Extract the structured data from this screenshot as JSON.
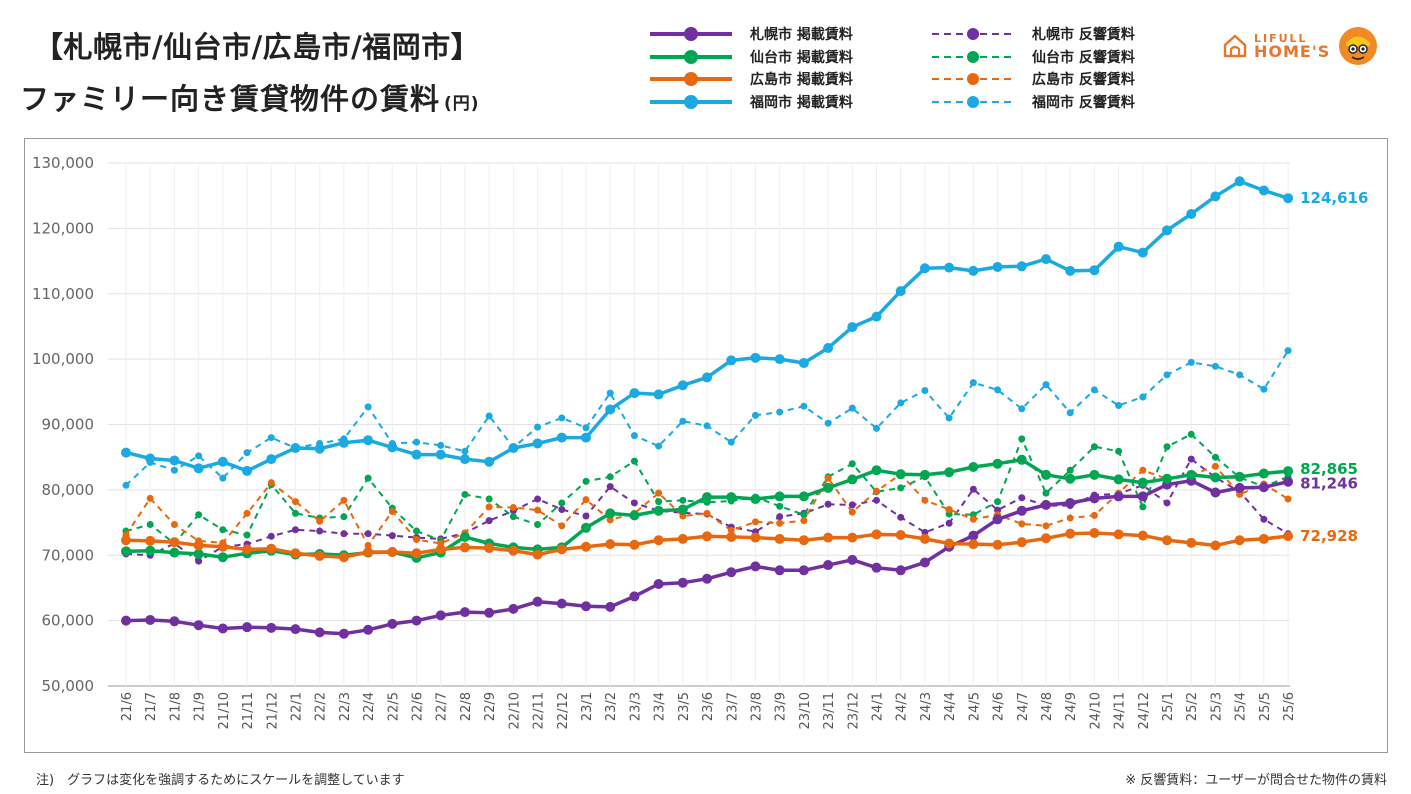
{
  "header": {
    "title_line1": "【札幌市/仙台市/広島市/福岡市】",
    "title_line2": "ファミリー向き賃貸物件の賃料",
    "unit": "(円)"
  },
  "logo": {
    "line1": "LIFULL",
    "line2": "HOME'S"
  },
  "notes": {
    "left": "注)　グラフは変化を強調するためにスケールを調整しています",
    "right": "※ 反響賃料：ユーザーが問合せた物件の賃料"
  },
  "colors": {
    "sapporo": "#7030a0",
    "sendai": "#00a651",
    "hiroshima": "#e8680f",
    "fukuoka": "#1aa9e0"
  },
  "chart_data": {
    "type": "line",
    "x": [
      "21/6",
      "21/7",
      "21/8",
      "21/9",
      "21/10",
      "21/11",
      "21/12",
      "22/1",
      "22/2",
      "22/3",
      "22/4",
      "22/5",
      "22/6",
      "22/7",
      "22/8",
      "22/9",
      "22/10",
      "22/11",
      "22/12",
      "23/1",
      "23/2",
      "23/3",
      "23/4",
      "23/5",
      "23/6",
      "23/7",
      "23/8",
      "23/9",
      "23/10",
      "23/11",
      "23/12",
      "24/1",
      "24/2",
      "24/3",
      "24/4",
      "24/5",
      "24/6",
      "24/7",
      "24/8",
      "24/9",
      "24/10",
      "24/11",
      "24/12",
      "25/1",
      "25/2",
      "25/3",
      "25/4",
      "25/5",
      "25/6"
    ],
    "ylim": [
      50000,
      130000
    ],
    "yticks": [
      "50,000",
      "60,000",
      "70,000",
      "80,000",
      "90,000",
      "100,000",
      "110,000",
      "120,000",
      "130,000"
    ],
    "grid": true,
    "legend_position": "top",
    "series": [
      {
        "name": "札幌市 掲載賃料",
        "city": "sapporo",
        "style": "solid",
        "values": [
          60000,
          60100,
          59900,
          59300,
          58800,
          59000,
          58900,
          58700,
          58200,
          58000,
          58600,
          59500,
          60000,
          60800,
          61300,
          61200,
          61800,
          62900,
          62600,
          62200,
          62100,
          63700,
          65600,
          65800,
          66400,
          67400,
          68300,
          67700,
          67700,
          68500,
          69300,
          68100,
          67700,
          68900,
          71300,
          73000,
          75500,
          76800,
          77700,
          78000,
          78700,
          79000,
          79000,
          80800,
          81400,
          79600,
          80300,
          80400,
          81246
        ]
      },
      {
        "name": "仙台市 掲載賃料",
        "city": "sendai",
        "style": "solid",
        "values": [
          70600,
          70700,
          70400,
          70200,
          69700,
          70300,
          70700,
          70100,
          70200,
          70000,
          70400,
          70500,
          69600,
          70400,
          72800,
          71800,
          71200,
          70900,
          71200,
          74200,
          76400,
          76100,
          76800,
          77000,
          78900,
          78900,
          78600,
          79000,
          79000,
          80300,
          81600,
          83000,
          82400,
          82300,
          82700,
          83500,
          84000,
          84600,
          82300,
          81700,
          82300,
          81600,
          81100,
          81700,
          82300,
          81900,
          82000,
          82500,
          82865
        ]
      },
      {
        "name": "広島市 掲載賃料",
        "city": "hiroshima",
        "style": "solid",
        "values": [
          72300,
          72200,
          72000,
          71500,
          71300,
          70900,
          71000,
          70300,
          69900,
          69700,
          70500,
          70500,
          70300,
          70900,
          71200,
          71100,
          70700,
          70100,
          70900,
          71300,
          71700,
          71600,
          72300,
          72500,
          72900,
          72800,
          72700,
          72500,
          72300,
          72700,
          72700,
          73200,
          73100,
          72500,
          71800,
          71700,
          71600,
          72000,
          72600,
          73300,
          73400,
          73200,
          73000,
          72300,
          71900,
          71500,
          72300,
          72500,
          72928
        ]
      },
      {
        "name": "福岡市 掲載賃料",
        "city": "fukuoka",
        "style": "solid",
        "values": [
          85700,
          84800,
          84500,
          83300,
          84300,
          82900,
          84700,
          86400,
          86300,
          87200,
          87600,
          86500,
          85400,
          85400,
          84700,
          84300,
          86400,
          87100,
          88000,
          88000,
          92300,
          94800,
          94600,
          96000,
          97200,
          99800,
          100200,
          100000,
          99400,
          101700,
          104900,
          106500,
          110400,
          113900,
          114000,
          113500,
          114100,
          114200,
          115300,
          113500,
          113600,
          117200,
          116300,
          119700,
          122200,
          124900,
          127200,
          125800,
          124616
        ]
      },
      {
        "name": "札幌市 反響賃料",
        "city": "sapporo",
        "style": "dashed",
        "values": [
          70200,
          70000,
          71800,
          69100,
          71300,
          71700,
          72900,
          73900,
          73700,
          73300,
          73300,
          73000,
          72700,
          72500,
          73400,
          75300,
          76800,
          78600,
          77000,
          76000,
          80500,
          78000,
          76800,
          76500,
          76300,
          74300,
          73600,
          75900,
          76400,
          77800,
          77700,
          78400,
          75800,
          73500,
          74900,
          80100,
          76900,
          78800,
          77600,
          77600,
          79200,
          79400,
          80700,
          78000,
          84700,
          81900,
          79700,
          75500,
          73300
        ]
      },
      {
        "name": "仙台市 反響賃料",
        "city": "sendai",
        "style": "dashed",
        "values": [
          73700,
          74700,
          71800,
          76200,
          73900,
          73100,
          80800,
          76400,
          75700,
          75900,
          81800,
          77200,
          73700,
          72300,
          79300,
          78600,
          75900,
          74700,
          78000,
          81300,
          82000,
          84400,
          78200,
          78400,
          78100,
          78300,
          78900,
          77500,
          76200,
          82000,
          84000,
          79700,
          80300,
          82000,
          76300,
          76200,
          78200,
          87800,
          79500,
          83000,
          86600,
          85900,
          77400,
          86600,
          88500,
          85000,
          81900,
          80500,
          82000
        ]
      },
      {
        "name": "広島市 反響賃料",
        "city": "hiroshima",
        "style": "dashed",
        "values": [
          73100,
          78700,
          74700,
          72200,
          71900,
          76400,
          81100,
          78200,
          75200,
          78400,
          71500,
          76700,
          72400,
          71800,
          73400,
          77400,
          77300,
          76900,
          74500,
          78500,
          75400,
          76400,
          79500,
          76000,
          76400,
          73800,
          75100,
          74900,
          75300,
          81800,
          76600,
          79800,
          82400,
          78400,
          77000,
          75500,
          76200,
          74800,
          74500,
          75700,
          76100,
          79500,
          83000,
          81700,
          82300,
          83600,
          79300,
          80900,
          78600
        ]
      },
      {
        "name": "福岡市 反響賃料",
        "city": "fukuoka",
        "style": "dashed",
        "values": [
          80700,
          84200,
          83000,
          85200,
          81800,
          85700,
          88000,
          86400,
          87100,
          87800,
          92700,
          87100,
          87300,
          86800,
          85900,
          91300,
          86500,
          89600,
          91000,
          89500,
          94800,
          88300,
          86700,
          90500,
          89800,
          87300,
          91400,
          91900,
          92800,
          90200,
          92500,
          89400,
          93300,
          95200,
          91000,
          96400,
          95300,
          92400,
          96100,
          91800,
          95300,
          92900,
          94200,
          97600,
          99500,
          98900,
          97600,
          95400,
          101300
        ]
      }
    ],
    "end_labels": [
      {
        "city": "fukuoka",
        "text": "124,616"
      },
      {
        "city": "sendai",
        "text": "82,865"
      },
      {
        "city": "sapporo",
        "text": "81,246"
      },
      {
        "city": "hiroshima",
        "text": "72,928"
      }
    ]
  }
}
